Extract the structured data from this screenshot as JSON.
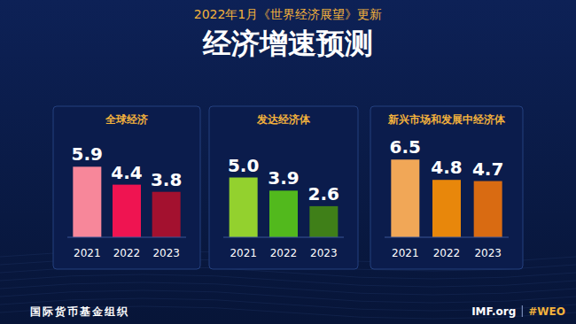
{
  "header": {
    "subtitle": "2022年1月《世界经济展望》更新",
    "title": "经济增速预测"
  },
  "chart_data": [
    {
      "type": "bar",
      "title": "全球经济",
      "categories": [
        "2021",
        "2022",
        "2023"
      ],
      "values": [
        5.9,
        4.4,
        3.8
      ],
      "value_labels": [
        "5.9",
        "4.4",
        "3.8"
      ],
      "colors": [
        "#f7879a",
        "#ef1451",
        "#a3112f"
      ],
      "ylim": [
        0,
        8
      ],
      "data_labels": true,
      "tick_labels": "x"
    },
    {
      "type": "bar",
      "title": "发达经济体",
      "categories": [
        "2021",
        "2022",
        "2023"
      ],
      "values": [
        5.0,
        3.9,
        2.6
      ],
      "value_labels": [
        "5.0",
        "3.9",
        "2.6"
      ],
      "colors": [
        "#93d12e",
        "#52b91d",
        "#3f7f18"
      ],
      "ylim": [
        0,
        8
      ],
      "data_labels": true,
      "tick_labels": "x"
    },
    {
      "type": "bar",
      "title": "新兴市场和发展中经济体",
      "categories": [
        "2021",
        "2022",
        "2023"
      ],
      "values": [
        6.5,
        4.8,
        4.7
      ],
      "value_labels": [
        "6.5",
        "4.8",
        "4.7"
      ],
      "colors": [
        "#f1a757",
        "#e8870b",
        "#d96b12"
      ],
      "ylim": [
        0,
        8
      ],
      "data_labels": true,
      "tick_labels": "x"
    }
  ],
  "footer": {
    "left": "国际货币基金组织",
    "site": "IMF.org",
    "tag": "#WEO"
  }
}
